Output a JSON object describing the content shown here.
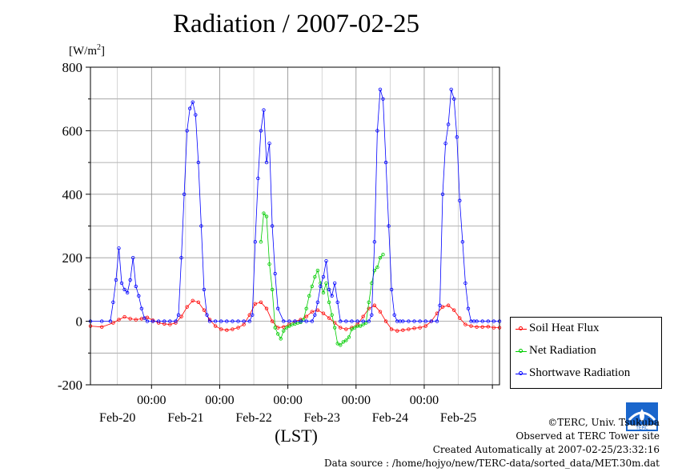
{
  "chart_data": {
    "type": "line",
    "title": "Radiation / 2007-02-25",
    "unit_label_base": "[W/m",
    "unit_label_sup": "2",
    "unit_label_end": "]",
    "xlabel": "(LST)",
    "ylim": [
      -200,
      800
    ],
    "yticks": [
      -200,
      0,
      200,
      400,
      600,
      800
    ],
    "xlim_hours": [
      0,
      144
    ],
    "grid": true,
    "x_tick_top_labels": [
      "00:00",
      "00:00",
      "00:00",
      "00:00",
      "00:00"
    ],
    "x_tick_bottom_labels": [
      "Feb-20",
      "Feb-21",
      "Feb-22",
      "Feb-23",
      "Feb-24",
      "Feb-25"
    ],
    "legend_position": "lower-right, outside plot",
    "series": [
      {
        "name": "Soil Heat Flux",
        "color": "#ff0000",
        "x": [
          0,
          4,
          8,
          10,
          12,
          14,
          16,
          18,
          20,
          22,
          24,
          26,
          28,
          30,
          32,
          34,
          36,
          38,
          40,
          42,
          44,
          46,
          48,
          50,
          52,
          54,
          56,
          58,
          60,
          62,
          64,
          66,
          68,
          70,
          72,
          74,
          76,
          78,
          80,
          82,
          84,
          86,
          88,
          90,
          92,
          94,
          96,
          98,
          100,
          102,
          104,
          106,
          108,
          110,
          112,
          114,
          116,
          118,
          120,
          122,
          124,
          126,
          128,
          130,
          132,
          134,
          136,
          138,
          140,
          142,
          144
        ],
        "values": [
          -15,
          -18,
          -5,
          5,
          14,
          8,
          5,
          8,
          12,
          3,
          -5,
          -8,
          -10,
          -5,
          15,
          45,
          65,
          60,
          35,
          5,
          -15,
          -25,
          -28,
          -25,
          -20,
          -10,
          20,
          55,
          60,
          40,
          0,
          -20,
          -18,
          -10,
          0,
          5,
          15,
          30,
          35,
          25,
          10,
          -5,
          -20,
          -25,
          -20,
          -10,
          15,
          40,
          50,
          30,
          0,
          -25,
          -30,
          -28,
          -25,
          -22,
          -20,
          -15,
          0,
          25,
          45,
          50,
          35,
          10,
          -10,
          -15,
          -18,
          -18,
          -17,
          -20,
          -20
        ]
      },
      {
        "name": "Net Radiation",
        "color": "#00cc00",
        "x": [
          60,
          61,
          62,
          63,
          64,
          65,
          66,
          67,
          68,
          69,
          70,
          71,
          72,
          73,
          74,
          75,
          76,
          77,
          78,
          79,
          80,
          81,
          82,
          83,
          84,
          85,
          86,
          87,
          88,
          89,
          90,
          91,
          92,
          93,
          94,
          95,
          96,
          97,
          98,
          99,
          100,
          101,
          102,
          103
        ],
        "values": [
          250,
          340,
          330,
          180,
          100,
          -20,
          -40,
          -55,
          -30,
          -20,
          -15,
          -10,
          -8,
          -5,
          -3,
          5,
          40,
          80,
          110,
          140,
          160,
          120,
          90,
          120,
          60,
          20,
          -20,
          -70,
          -75,
          -65,
          -60,
          -50,
          -25,
          -20,
          -15,
          -15,
          -10,
          -5,
          60,
          120,
          160,
          170,
          200,
          210
        ]
      },
      {
        "name": "Shortwave Radiation",
        "color": "#0000ff",
        "x": [
          0,
          4,
          7,
          8,
          9,
          10,
          11,
          12,
          13,
          14,
          15,
          16,
          17,
          18,
          19,
          20,
          22,
          24,
          26,
          28,
          30,
          31,
          32,
          33,
          34,
          35,
          36,
          37,
          38,
          39,
          40,
          41,
          42,
          44,
          46,
          48,
          50,
          52,
          54,
          56,
          57,
          58,
          59,
          60,
          61,
          62,
          63,
          64,
          65,
          66,
          68,
          70,
          72,
          74,
          76,
          78,
          79,
          80,
          81,
          82,
          83,
          84,
          85,
          86,
          87,
          88,
          90,
          92,
          94,
          96,
          98,
          99,
          100,
          101,
          102,
          103,
          104,
          105,
          106,
          107,
          108,
          109,
          110,
          112,
          114,
          116,
          118,
          120,
          122,
          123,
          124,
          125,
          126,
          127,
          128,
          129,
          130,
          131,
          132,
          133,
          134,
          135,
          136,
          138,
          140,
          142,
          144
        ],
        "values": [
          0,
          0,
          0,
          60,
          130,
          230,
          120,
          100,
          90,
          130,
          200,
          110,
          80,
          40,
          10,
          0,
          0,
          0,
          0,
          0,
          0,
          20,
          200,
          400,
          600,
          670,
          690,
          650,
          500,
          300,
          100,
          20,
          0,
          0,
          0,
          0,
          0,
          0,
          0,
          0,
          20,
          250,
          450,
          600,
          665,
          500,
          560,
          300,
          150,
          40,
          0,
          0,
          0,
          0,
          0,
          0,
          20,
          60,
          110,
          140,
          190,
          100,
          80,
          120,
          60,
          0,
          0,
          0,
          0,
          0,
          0,
          20,
          250,
          600,
          730,
          700,
          500,
          300,
          100,
          20,
          0,
          0,
          0,
          0,
          0,
          0,
          0,
          0,
          0,
          50,
          400,
          560,
          620,
          730,
          700,
          580,
          380,
          250,
          120,
          40,
          0,
          0,
          0,
          0,
          0,
          0,
          0
        ]
      }
    ]
  },
  "legend": {
    "items": [
      "Soil Heat Flux",
      "Net Radiation",
      "Shortwave Radiation"
    ],
    "colors": [
      "#ff0000",
      "#00cc00",
      "#0000ff"
    ]
  },
  "footer": {
    "line1": "©TERC, Univ. Tsukuba",
    "line2": "Observed at TERC Tower site",
    "line3": "Created Automatically at 2007-02-25/23:32:16",
    "line4": "Data source : /home/hojyo/new/TERC-data/sorted_data/MET.30m.dat"
  }
}
